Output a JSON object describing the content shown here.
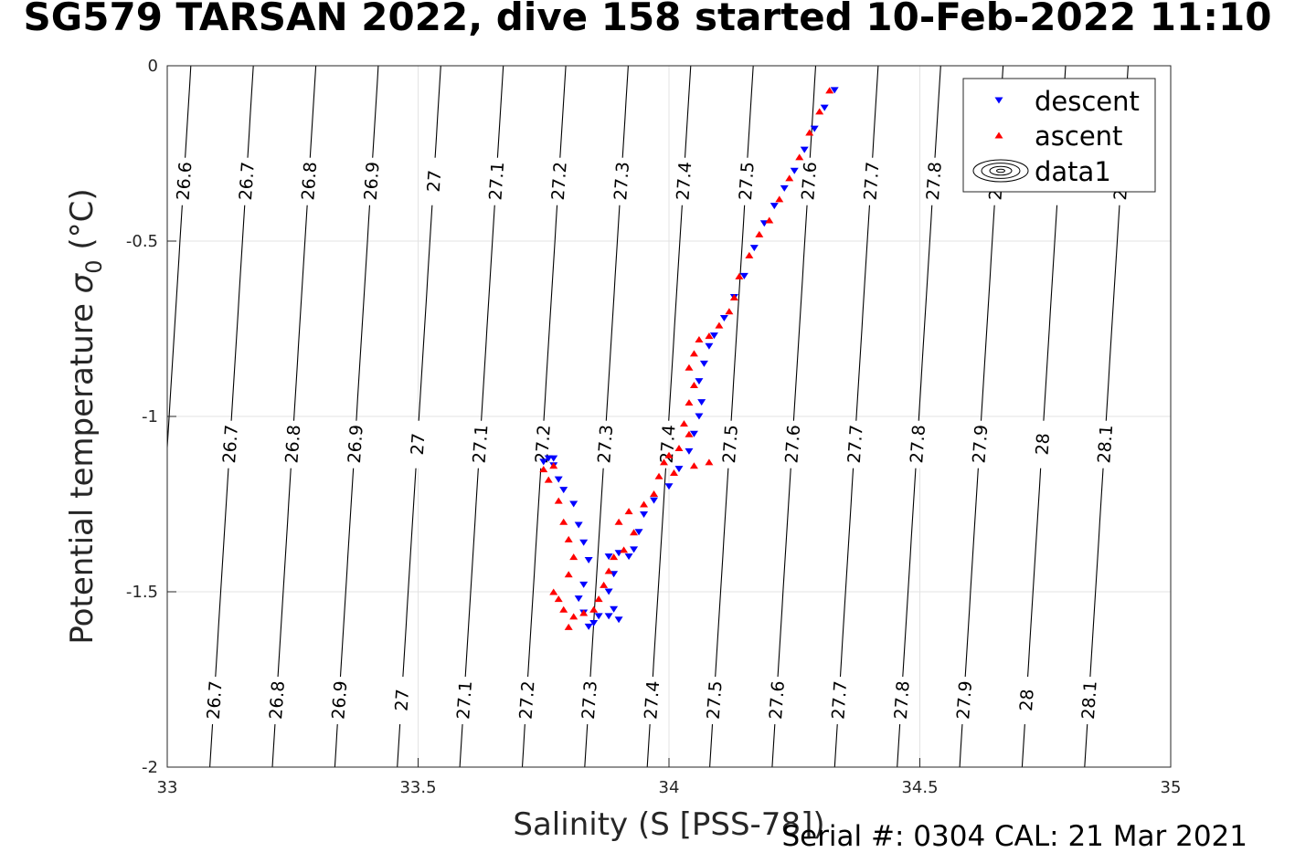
{
  "chart_data": {
    "type": "scatter",
    "title": "SG579 TARSAN 2022, dive 158 started 10-Feb-2022 11:10",
    "xlabel": "Salinity (S [PSS-78])",
    "ylabel": "Potential temperature",
    "ylabel_symbol": "σ",
    "ylabel_subscript": "0",
    "ylabel_unit": "(°C)",
    "xlim": [
      33,
      35
    ],
    "ylim": [
      -2,
      0
    ],
    "xticks": [
      "33",
      "33.5",
      "34",
      "34.5",
      "35"
    ],
    "yticks": [
      "0",
      "-0.5",
      "-1",
      "-1.5",
      "-2"
    ],
    "grid": true,
    "legend": "top-right",
    "legend_entries": [
      "descent",
      "ascent",
      "data1"
    ],
    "isopycnals": [
      "26.6",
      "26.7",
      "26.8",
      "26.9",
      "27",
      "27.1",
      "27.2",
      "27.3",
      "27.4",
      "27.5",
      "27.6",
      "27.7",
      "27.8",
      "27.9",
      "28",
      "28.1"
    ],
    "colors": {
      "descent": "#0000ff",
      "ascent": "#ff0000",
      "contour": "#000000",
      "grid": "#e3e3e3"
    },
    "series": [
      {
        "name": "descent",
        "marker": "triangle-down",
        "points": [
          [
            34.33,
            -0.07
          ],
          [
            34.31,
            -0.12
          ],
          [
            34.29,
            -0.18
          ],
          [
            34.27,
            -0.24
          ],
          [
            34.25,
            -0.3
          ],
          [
            34.23,
            -0.35
          ],
          [
            34.21,
            -0.4
          ],
          [
            34.19,
            -0.45
          ],
          [
            34.17,
            -0.52
          ],
          [
            34.15,
            -0.6
          ],
          [
            34.13,
            -0.66
          ],
          [
            34.11,
            -0.72
          ],
          [
            34.09,
            -0.77
          ],
          [
            34.08,
            -0.8
          ],
          [
            34.07,
            -0.85
          ],
          [
            34.06,
            -0.9
          ],
          [
            34.065,
            -0.96
          ],
          [
            34.06,
            -1.0
          ],
          [
            34.05,
            -1.05
          ],
          [
            34.04,
            -1.1
          ],
          [
            34.02,
            -1.15
          ],
          [
            34.0,
            -1.2
          ],
          [
            33.97,
            -1.24
          ],
          [
            33.95,
            -1.28
          ],
          [
            33.94,
            -1.33
          ],
          [
            33.93,
            -1.38
          ],
          [
            33.92,
            -1.4
          ],
          [
            33.9,
            -1.39
          ],
          [
            33.88,
            -1.4
          ],
          [
            33.89,
            -1.45
          ],
          [
            33.88,
            -1.5
          ],
          [
            33.89,
            -1.55
          ],
          [
            33.9,
            -1.58
          ],
          [
            33.88,
            -1.57
          ],
          [
            33.86,
            -1.57
          ],
          [
            33.85,
            -1.59
          ],
          [
            33.84,
            -1.6
          ],
          [
            33.83,
            -1.56
          ],
          [
            33.82,
            -1.52
          ],
          [
            33.83,
            -1.48
          ],
          [
            33.84,
            -1.41
          ],
          [
            33.83,
            -1.36
          ],
          [
            33.82,
            -1.31
          ],
          [
            33.81,
            -1.25
          ],
          [
            33.79,
            -1.21
          ],
          [
            33.78,
            -1.18
          ],
          [
            33.77,
            -1.14
          ],
          [
            33.76,
            -1.12
          ],
          [
            33.75,
            -1.13
          ],
          [
            33.77,
            -1.12
          ]
        ]
      },
      {
        "name": "ascent",
        "marker": "triangle-up",
        "points": [
          [
            34.32,
            -0.07
          ],
          [
            34.3,
            -0.13
          ],
          [
            34.28,
            -0.19
          ],
          [
            34.26,
            -0.26
          ],
          [
            34.24,
            -0.32
          ],
          [
            34.22,
            -0.38
          ],
          [
            34.2,
            -0.44
          ],
          [
            34.18,
            -0.48
          ],
          [
            34.16,
            -0.54
          ],
          [
            34.14,
            -0.6
          ],
          [
            34.13,
            -0.66
          ],
          [
            34.12,
            -0.7
          ],
          [
            34.1,
            -0.74
          ],
          [
            34.08,
            -0.77
          ],
          [
            34.06,
            -0.78
          ],
          [
            34.05,
            -0.82
          ],
          [
            34.04,
            -0.86
          ],
          [
            34.05,
            -0.91
          ],
          [
            34.04,
            -0.96
          ],
          [
            34.03,
            -1.02
          ],
          [
            34.04,
            -1.05
          ],
          [
            34.02,
            -1.09
          ],
          [
            34.0,
            -1.11
          ],
          [
            33.99,
            -1.13
          ],
          [
            34.01,
            -1.16
          ],
          [
            34.08,
            -1.13
          ],
          [
            34.05,
            -1.14
          ],
          [
            33.98,
            -1.17
          ],
          [
            33.97,
            -1.22
          ],
          [
            33.95,
            -1.25
          ],
          [
            33.92,
            -1.27
          ],
          [
            33.9,
            -1.3
          ],
          [
            33.93,
            -1.33
          ],
          [
            33.91,
            -1.38
          ],
          [
            33.89,
            -1.4
          ],
          [
            33.88,
            -1.44
          ],
          [
            33.87,
            -1.48
          ],
          [
            33.86,
            -1.52
          ],
          [
            33.85,
            -1.55
          ],
          [
            33.83,
            -1.56
          ],
          [
            33.81,
            -1.57
          ],
          [
            33.8,
            -1.6
          ],
          [
            33.79,
            -1.55
          ],
          [
            33.78,
            -1.52
          ],
          [
            33.77,
            -1.5
          ],
          [
            33.8,
            -1.45
          ],
          [
            33.81,
            -1.4
          ],
          [
            33.8,
            -1.35
          ],
          [
            33.79,
            -1.3
          ],
          [
            33.78,
            -1.24
          ],
          [
            33.76,
            -1.18
          ],
          [
            33.75,
            -1.15
          ],
          [
            33.77,
            -1.14
          ]
        ]
      }
    ]
  },
  "footer": "Serial #: 0304  CAL: 21 Mar 2021"
}
